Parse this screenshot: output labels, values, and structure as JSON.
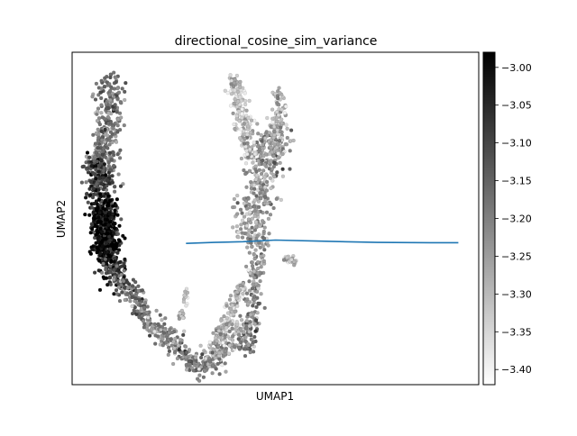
{
  "chart_data": {
    "type": "scatter",
    "title": "directional_cosine_sim_variance",
    "xlabel": "UMAP1",
    "ylabel": "UMAP2",
    "x_ticks": [],
    "y_ticks": [],
    "grid": false,
    "legend": "none",
    "colormap": "Greys",
    "colorbar": {
      "range": [
        -3.42,
        -2.98
      ],
      "ticks": [
        {
          "value": -3.0,
          "label": "−3.00"
        },
        {
          "value": -3.05,
          "label": "−3.05"
        },
        {
          "value": -3.1,
          "label": "−3.10"
        },
        {
          "value": -3.15,
          "label": "−3.15"
        },
        {
          "value": -3.2,
          "label": "−3.20"
        },
        {
          "value": -3.25,
          "label": "−3.25"
        },
        {
          "value": -3.3,
          "label": "−3.30"
        },
        {
          "value": -3.35,
          "label": "−3.35"
        },
        {
          "value": -3.4,
          "label": "−3.40"
        }
      ]
    },
    "line_color": "#1f77b4",
    "point_color_range": [
      "#f2f2f2",
      "#000000"
    ],
    "trend_line": {
      "x": [
        0.28,
        0.35,
        0.42,
        0.5,
        0.6,
        0.75,
        0.88,
        0.95
      ],
      "y": [
        0.425,
        0.428,
        0.43,
        0.435,
        0.432,
        0.428,
        0.427,
        0.427
      ]
    },
    "cloud_segments": [
      {
        "x0": 0.1,
        "y0": 0.92,
        "x1": 0.07,
        "y1": 0.6,
        "w": 0.04,
        "v0": -3.2,
        "v1": -3.22,
        "n": 340
      },
      {
        "x0": 0.06,
        "y0": 0.68,
        "x1": 0.1,
        "y1": 0.3,
        "w": 0.04,
        "v0": -3.1,
        "v1": -3.05,
        "n": 380
      },
      {
        "x0": 0.08,
        "y0": 0.55,
        "x1": 0.08,
        "y1": 0.4,
        "w": 0.035,
        "v0": -3.0,
        "v1": -2.99,
        "n": 300
      },
      {
        "x0": 0.1,
        "y0": 0.35,
        "x1": 0.2,
        "y1": 0.18,
        "w": 0.03,
        "v0": -3.18,
        "v1": -3.22,
        "n": 160
      },
      {
        "x0": 0.2,
        "y0": 0.18,
        "x1": 0.32,
        "y1": 0.04,
        "w": 0.03,
        "v0": -3.25,
        "v1": -3.2,
        "n": 180
      },
      {
        "x0": 0.32,
        "y0": 0.05,
        "x1": 0.43,
        "y1": 0.18,
        "w": 0.035,
        "v0": -3.22,
        "v1": -3.32,
        "n": 200
      },
      {
        "x0": 0.43,
        "y0": 0.1,
        "x1": 0.46,
        "y1": 0.45,
        "w": 0.025,
        "v0": -3.2,
        "v1": -3.28,
        "n": 180
      },
      {
        "x0": 0.43,
        "y0": 0.45,
        "x1": 0.5,
        "y1": 0.75,
        "w": 0.05,
        "v0": -3.28,
        "v1": -3.25,
        "n": 330
      },
      {
        "x0": 0.4,
        "y0": 0.92,
        "x1": 0.44,
        "y1": 0.68,
        "w": 0.025,
        "v0": -3.35,
        "v1": -3.33,
        "n": 190
      },
      {
        "x0": 0.51,
        "y0": 0.88,
        "x1": 0.5,
        "y1": 0.68,
        "w": 0.02,
        "v0": -3.32,
        "v1": -3.3,
        "n": 120
      },
      {
        "x0": 0.35,
        "y0": 0.12,
        "x1": 0.42,
        "y1": 0.3,
        "w": 0.018,
        "v0": -3.33,
        "v1": -3.35,
        "n": 130
      },
      {
        "x0": 0.27,
        "y0": 0.2,
        "x1": 0.28,
        "y1": 0.28,
        "w": 0.008,
        "v0": -3.33,
        "v1": -3.35,
        "n": 25
      },
      {
        "x0": 0.52,
        "y0": 0.38,
        "x1": 0.55,
        "y1": 0.37,
        "w": 0.01,
        "v0": -3.35,
        "v1": -3.35,
        "n": 35
      }
    ]
  }
}
